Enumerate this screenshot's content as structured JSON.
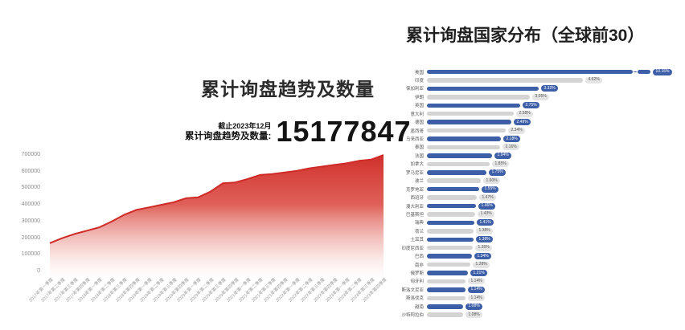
{
  "left_chart": {
    "title": "累计询盘趋势及数量",
    "stat": {
      "caption": "截止2023年12月",
      "label": "累计询盘趋势及数量:",
      "value": "15177847"
    }
  },
  "right_chart": {
    "title": "累计询盘国家分布（全球前30）"
  },
  "colors": {
    "area_line": "#cf2b27",
    "area_fill_top": "#d0302b",
    "bar_blue": "#3d5fa8",
    "bar_gray": "#d4d4d4",
    "pill_gray_bg": "#e4e4e4",
    "pill_gray_text": "#555555",
    "pill_blue_text": "#ffffff"
  },
  "chart_data": [
    {
      "type": "area",
      "title": "累计询盘趋势及数量",
      "annotation": "截止2023年12月 累计询盘趋势及数量: 15177847",
      "x": [
        "2017年第一季度",
        "2017年第二季度",
        "2017年第三季度",
        "2017年第四季度",
        "2018年第一季度",
        "2018年第二季度",
        "2018年第三季度",
        "2018年第四季度",
        "2019年第一季度",
        "2019年第二季度",
        "2019年第三季度",
        "2019年第四季度",
        "2020年第一季度",
        "2020年第二季度",
        "2020年第三季度",
        "2020年第四季度",
        "2021年第一季度",
        "2021年第二季度",
        "2021年第三季度",
        "2021年第四季度",
        "2022年第一季度",
        "2022年第二季度",
        "2022年第三季度",
        "2022年第四季度",
        "2023年第一季度",
        "2023年第二季度",
        "2023年第三季度",
        "2023年第四季度"
      ],
      "values": [
        170000,
        200000,
        225000,
        245000,
        265000,
        300000,
        340000,
        370000,
        385000,
        400000,
        415000,
        440000,
        445000,
        480000,
        530000,
        535000,
        555000,
        580000,
        585000,
        595000,
        605000,
        620000,
        630000,
        640000,
        650000,
        665000,
        672000,
        700000
      ],
      "ylim": [
        0,
        700000
      ],
      "yticks": [
        0,
        100000,
        200000,
        300000,
        400000,
        500000,
        600000,
        700000
      ],
      "grid": false,
      "legend": false
    },
    {
      "type": "bar",
      "orientation": "horizontal",
      "title": "累计询盘国家分布（全球前30）",
      "categories": [
        "美国",
        "印度",
        "保加利亚",
        "伊朗",
        "英国",
        "意大利",
        "德国",
        "墨西哥",
        "马来西亚",
        "泰国",
        "法国",
        "加拿大",
        "罗马尼亚",
        "波兰",
        "克罗地亚",
        "西班牙",
        "澳大利亚",
        "巴基斯坦",
        "瑞典",
        "荷兰",
        "土耳其",
        "印度尼西亚",
        "巴西",
        "南非",
        "俄罗斯",
        "匈牙利",
        "斯洛文尼亚",
        "斯洛伐克",
        "越南",
        "沙特阿拉伯"
      ],
      "values": [
        10.16,
        4.62,
        3.32,
        3.05,
        2.75,
        2.58,
        2.49,
        2.34,
        2.18,
        2.16,
        1.94,
        1.85,
        1.75,
        1.6,
        1.55,
        1.47,
        1.46,
        1.43,
        1.41,
        1.38,
        1.38,
        1.35,
        1.34,
        1.28,
        1.21,
        1.14,
        1.14,
        1.14,
        1.08,
        1.08
      ],
      "value_labels": [
        "10.16%",
        "4.62%",
        "3.32%",
        "3.05%",
        "2.75%",
        "2.58%",
        "2.49%",
        "2.34%",
        "2.18%",
        "2.16%",
        "1.94%",
        "1.85%",
        "1.75%",
        "1.60%",
        "1.55%",
        "1.47%",
        "1.46%",
        "1.43%",
        "1.41%",
        "1.38%",
        "1.38%",
        "1.35%",
        "1.34%",
        "1.28%",
        "1.21%",
        "1.14%",
        "1.14%",
        "1.14%",
        "1.08%",
        "1.08%"
      ],
      "first_bar_axis_break": true,
      "bar_color_pattern": "alternating blue/gray",
      "legend": false
    }
  ]
}
